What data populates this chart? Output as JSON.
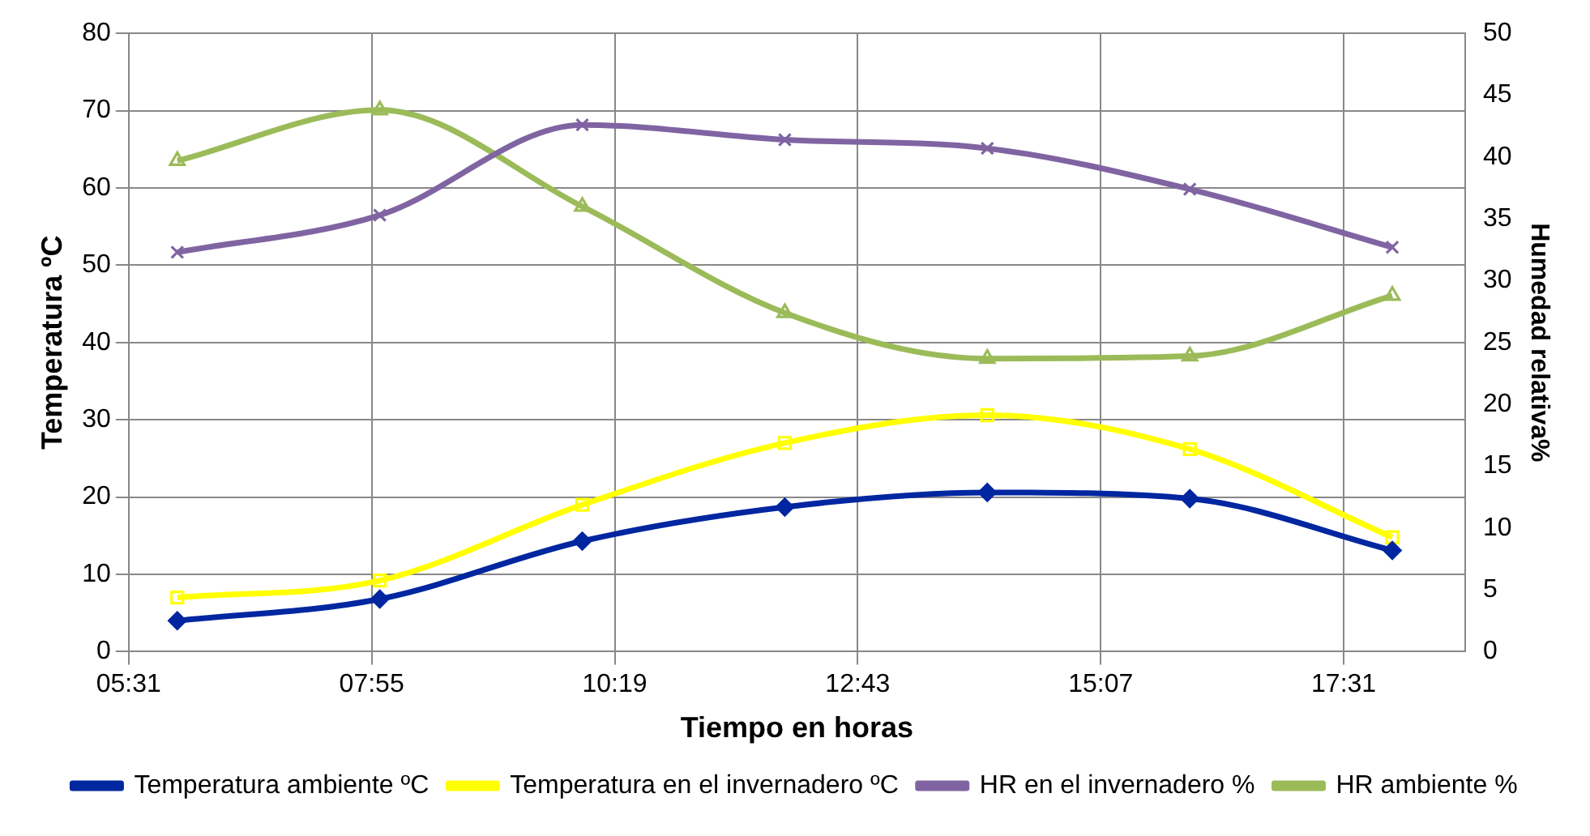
{
  "chart_data": {
    "type": "line",
    "xlabel": "Tiempo en horas",
    "ylabel": "Temperatura ºC",
    "y2label": "Humedad relativa%",
    "x": [
      6,
      8,
      10,
      12,
      14,
      16,
      18
    ],
    "series": [
      {
        "name": "Temperatura ambiente ºC",
        "color": "#0026a0",
        "marker": "diamond",
        "values": [
          4.0,
          6.8,
          14.3,
          18.7,
          20.6,
          19.8,
          13.1
        ]
      },
      {
        "name": "Temperatura en el invernadero ºC",
        "color": "#ffff00",
        "marker": "square",
        "values": [
          7.0,
          9.2,
          19.0,
          27.0,
          30.6,
          26.2,
          14.8
        ]
      },
      {
        "name": "HR en el invernadero %",
        "color": "#8064a2",
        "marker": "cross",
        "axis": "y2",
        "values": [
          32.3,
          35.3,
          42.6,
          41.4,
          40.7,
          37.4,
          32.7
        ]
      },
      {
        "name": "HR ambiente %",
        "color": "#9bbb59",
        "marker": "triangle",
        "axis": "y2",
        "values": [
          39.7,
          43.8,
          36.0,
          27.4,
          23.7,
          23.9,
          28.8
        ]
      }
    ],
    "xlim": [
      5.52,
      18.72
    ],
    "xticks": [
      {
        "value": 5.52,
        "label": "05:31"
      },
      {
        "value": 7.92,
        "label": "07:55"
      },
      {
        "value": 10.32,
        "label": "10:19"
      },
      {
        "value": 12.72,
        "label": "12:43"
      },
      {
        "value": 15.12,
        "label": "15:07"
      },
      {
        "value": 17.52,
        "label": "17:31"
      }
    ],
    "ylim": [
      0,
      80
    ],
    "yticks": [
      0,
      10,
      20,
      30,
      40,
      50,
      60,
      70,
      80
    ],
    "y2lim": [
      0,
      50
    ],
    "y2ticks": [
      0,
      5,
      10,
      15,
      20,
      25,
      30,
      35,
      40,
      45,
      50
    ],
    "grid": true,
    "legend": "bottom",
    "line_style": "solid"
  }
}
